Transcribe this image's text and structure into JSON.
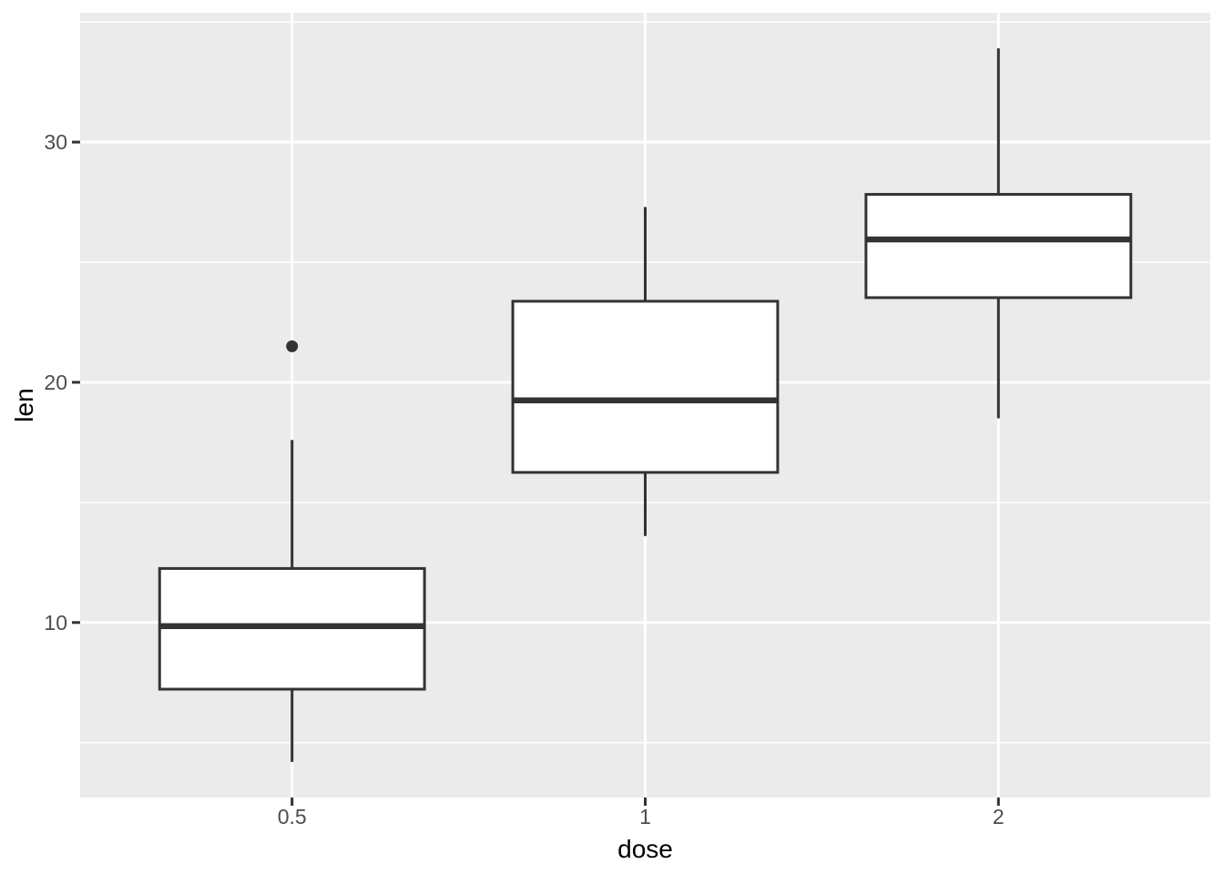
{
  "chart_data": {
    "type": "boxplot",
    "title": "",
    "xlabel": "dose",
    "ylabel": "len",
    "categories": [
      "0.5",
      "1",
      "2"
    ],
    "series": [
      {
        "category": "0.5",
        "whisker_low": 4.2,
        "q1": 7.225,
        "median": 9.85,
        "q3": 12.25,
        "whisker_high": 17.6,
        "outliers": [
          21.5
        ]
      },
      {
        "category": "1",
        "whisker_low": 13.6,
        "q1": 16.25,
        "median": 19.25,
        "q3": 23.375,
        "whisker_high": 27.3,
        "outliers": []
      },
      {
        "category": "2",
        "whisker_low": 18.5,
        "q1": 23.525,
        "median": 25.95,
        "q3": 27.825,
        "whisker_high": 33.9,
        "outliers": []
      }
    ],
    "y_major_ticks": [
      10,
      20,
      30
    ],
    "y_minor_ticks": [
      5,
      15,
      25,
      35
    ],
    "ylim": [
      2.715,
      35.385
    ],
    "box_width_fraction": 0.75,
    "grid": true,
    "legend_position": "none",
    "colors": {
      "panel_background": "#EBEBEB",
      "gridline": "#FFFFFF",
      "box_stroke": "#333333",
      "box_fill": "#FFFFFF",
      "outlier": "#333333",
      "tick_mark": "#333333",
      "tick_label": "#4D4D4D",
      "axis_title": "#000000",
      "figure_background": "#FFFFFF"
    }
  }
}
